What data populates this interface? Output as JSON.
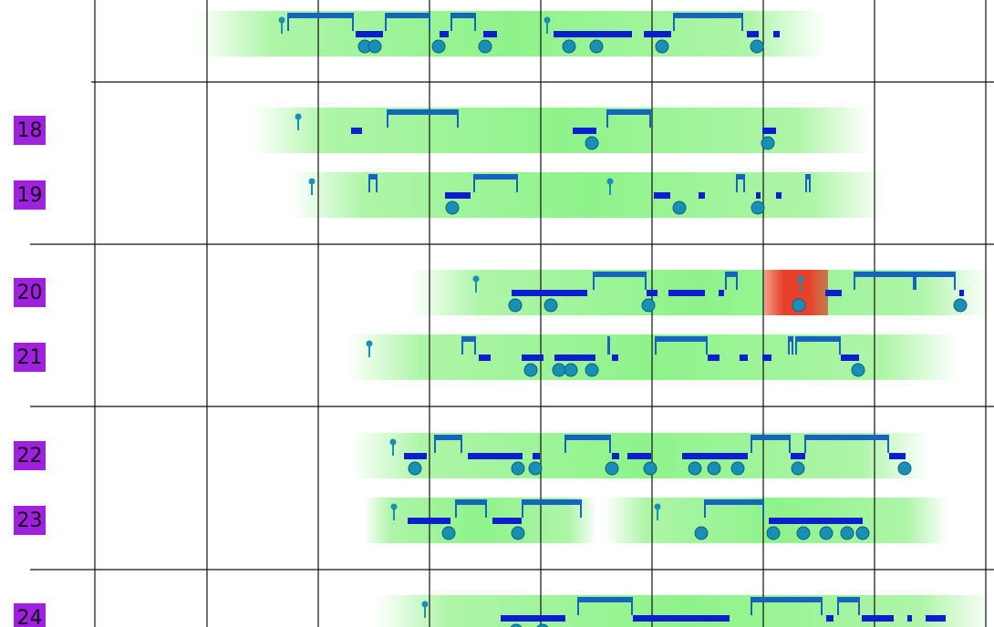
{
  "rows": [
    {
      "label": "18"
    },
    {
      "label": "19"
    },
    {
      "label": "20"
    },
    {
      "label": "21"
    },
    {
      "label": "22"
    },
    {
      "label": "23"
    },
    {
      "label": "24"
    }
  ]
}
